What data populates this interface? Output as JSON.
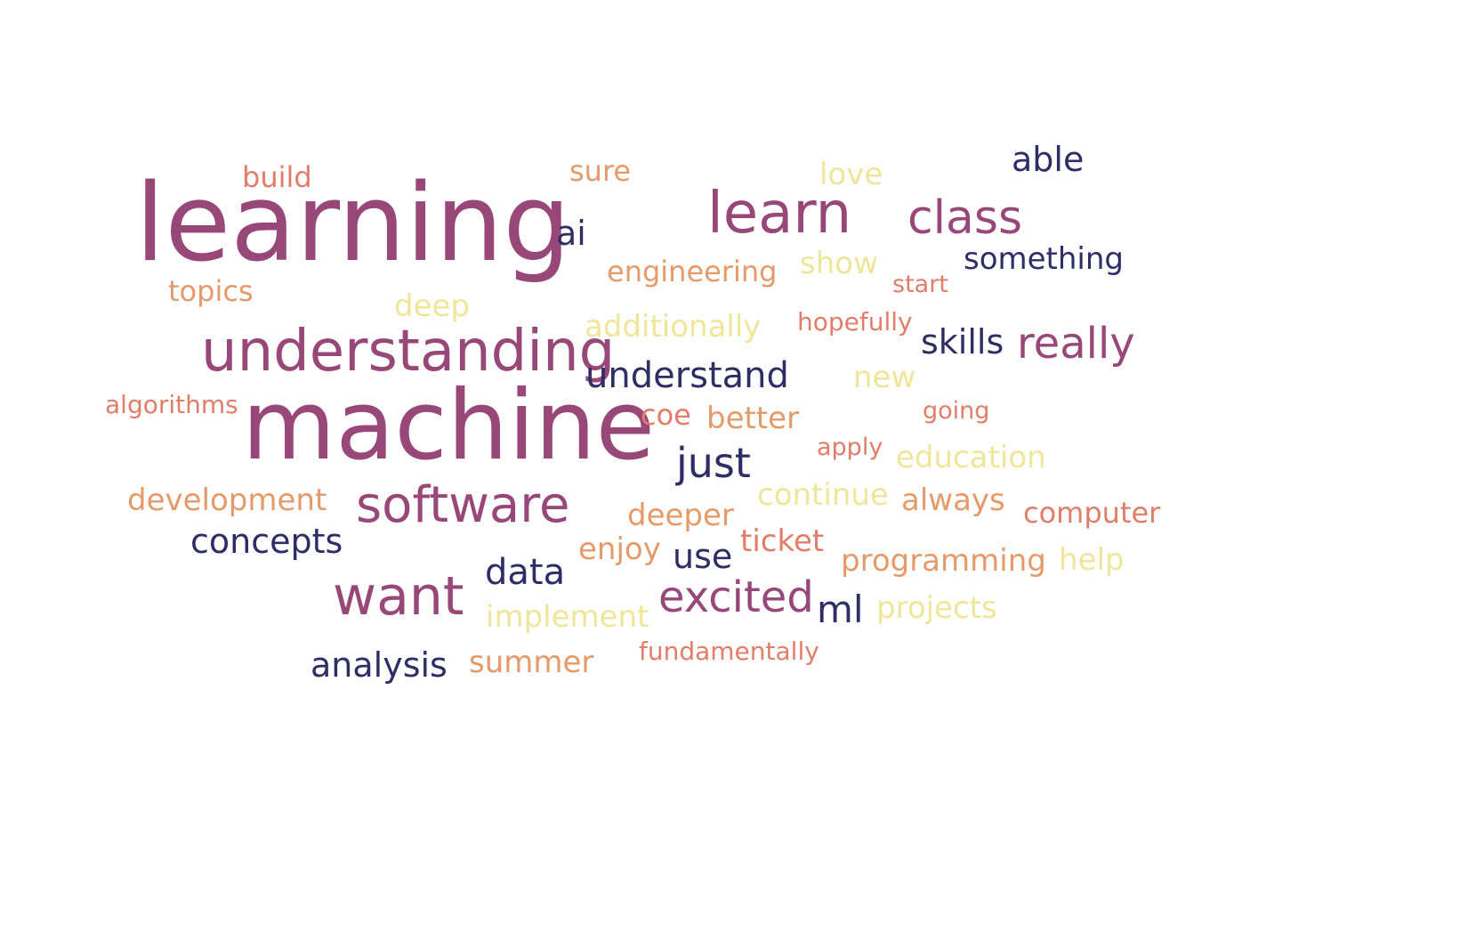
{
  "palette": {
    "purple": "#984779",
    "navy": "#2f2d65",
    "coral": "#e27d69",
    "orange": "#e59a6a",
    "yellow": "#efe69b"
  },
  "words": [
    {
      "text": "learning",
      "color": "purple"
    },
    {
      "text": "machine",
      "color": "purple"
    },
    {
      "text": "understanding",
      "color": "purple"
    },
    {
      "text": "software",
      "color": "purple"
    },
    {
      "text": "learn",
      "color": "purple"
    },
    {
      "text": "want",
      "color": "purple"
    },
    {
      "text": "class",
      "color": "purple"
    },
    {
      "text": "excited",
      "color": "purple"
    },
    {
      "text": "really",
      "color": "purple"
    },
    {
      "text": "just",
      "color": "navy"
    },
    {
      "text": "understand",
      "color": "navy"
    },
    {
      "text": "ml",
      "color": "navy"
    },
    {
      "text": "concepts",
      "color": "navy"
    },
    {
      "text": "data",
      "color": "navy"
    },
    {
      "text": "analysis",
      "color": "navy"
    },
    {
      "text": "skills",
      "color": "navy"
    },
    {
      "text": "use",
      "color": "navy"
    },
    {
      "text": "able",
      "color": "navy"
    },
    {
      "text": "ai",
      "color": "navy"
    },
    {
      "text": "something",
      "color": "navy"
    },
    {
      "text": "build",
      "color": "coral"
    },
    {
      "text": "start",
      "color": "coral"
    },
    {
      "text": "hopefully",
      "color": "coral"
    },
    {
      "text": "algorithms",
      "color": "coral"
    },
    {
      "text": "coe",
      "color": "coral"
    },
    {
      "text": "going",
      "color": "coral"
    },
    {
      "text": "apply",
      "color": "coral"
    },
    {
      "text": "computer",
      "color": "coral"
    },
    {
      "text": "ticket",
      "color": "coral"
    },
    {
      "text": "fundamentally",
      "color": "coral"
    },
    {
      "text": "sure",
      "color": "orange"
    },
    {
      "text": "engineering",
      "color": "orange"
    },
    {
      "text": "topics",
      "color": "orange"
    },
    {
      "text": "better",
      "color": "orange"
    },
    {
      "text": "development",
      "color": "orange"
    },
    {
      "text": "always",
      "color": "orange"
    },
    {
      "text": "deeper",
      "color": "orange"
    },
    {
      "text": "enjoy",
      "color": "orange"
    },
    {
      "text": "programming",
      "color": "orange"
    },
    {
      "text": "summer",
      "color": "orange"
    },
    {
      "text": "love",
      "color": "yellow"
    },
    {
      "text": "show",
      "color": "yellow"
    },
    {
      "text": "deep",
      "color": "yellow"
    },
    {
      "text": "additionally",
      "color": "yellow"
    },
    {
      "text": "new",
      "color": "yellow"
    },
    {
      "text": "education",
      "color": "yellow"
    },
    {
      "text": "continue",
      "color": "yellow"
    },
    {
      "text": "help",
      "color": "yellow"
    },
    {
      "text": "implement",
      "color": "yellow"
    },
    {
      "text": "projects",
      "color": "yellow"
    }
  ]
}
